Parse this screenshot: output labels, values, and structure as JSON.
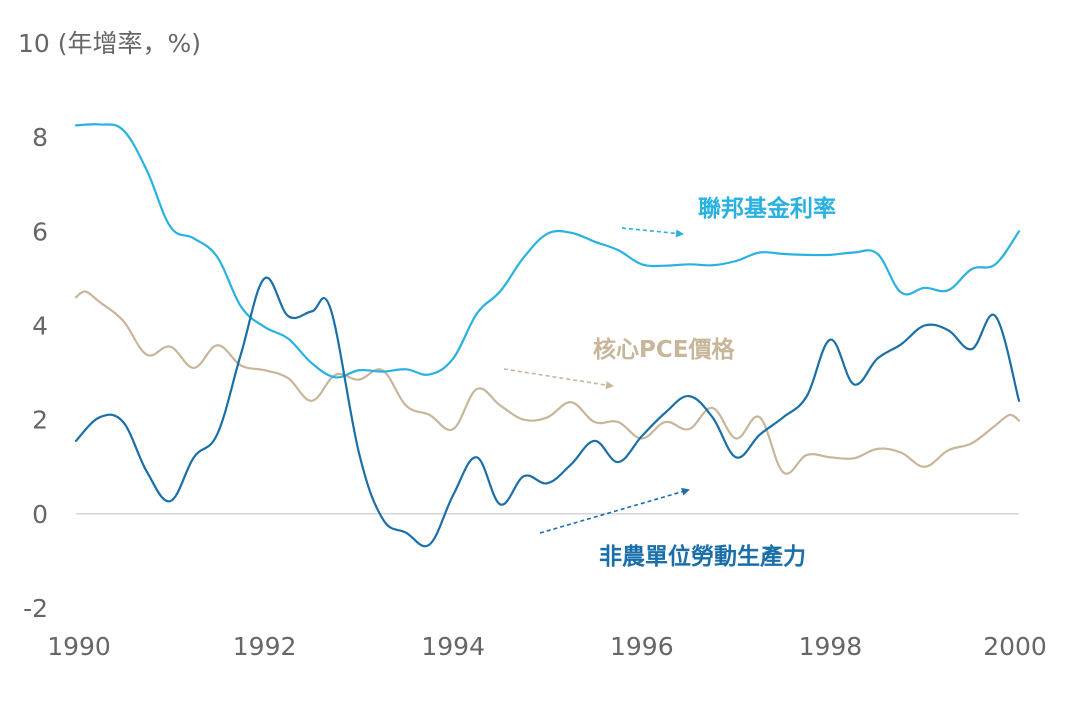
{
  "chart_data": {
    "type": "line",
    "ylabel": "10 (年增率，%)",
    "xlim": [
      1990,
      2000
    ],
    "ylim": [
      -2,
      10
    ],
    "y_ticks": [
      "-2",
      "0",
      "2",
      "4",
      "6",
      "8",
      "10"
    ],
    "x_ticks": [
      "1990",
      "1992",
      "1994",
      "1996",
      "1998",
      "2000"
    ],
    "zero_line": true,
    "series": [
      {
        "name": "聯邦基金利率",
        "color": "#29b1e0",
        "points": [
          [
            1990.0,
            8.25
          ],
          [
            1990.25,
            8.27
          ],
          [
            1990.5,
            8.15
          ],
          [
            1990.75,
            7.3
          ],
          [
            1991.0,
            6.1
          ],
          [
            1991.25,
            5.85
          ],
          [
            1991.5,
            5.45
          ],
          [
            1991.75,
            4.4
          ],
          [
            1992.0,
            3.97
          ],
          [
            1992.25,
            3.72
          ],
          [
            1992.5,
            3.2
          ],
          [
            1992.75,
            2.9
          ],
          [
            1993.0,
            3.05
          ],
          [
            1993.25,
            3.02
          ],
          [
            1993.5,
            3.07
          ],
          [
            1993.75,
            2.96
          ],
          [
            1994.0,
            3.3
          ],
          [
            1994.25,
            4.25
          ],
          [
            1994.5,
            4.73
          ],
          [
            1994.75,
            5.45
          ],
          [
            1995.0,
            5.95
          ],
          [
            1995.25,
            5.97
          ],
          [
            1995.5,
            5.78
          ],
          [
            1995.75,
            5.6
          ],
          [
            1996.0,
            5.3
          ],
          [
            1996.25,
            5.27
          ],
          [
            1996.5,
            5.3
          ],
          [
            1996.75,
            5.28
          ],
          [
            1997.0,
            5.37
          ],
          [
            1997.25,
            5.55
          ],
          [
            1997.5,
            5.52
          ],
          [
            1997.75,
            5.5
          ],
          [
            1998.0,
            5.5
          ],
          [
            1998.25,
            5.55
          ],
          [
            1998.5,
            5.52
          ],
          [
            1998.75,
            4.7
          ],
          [
            1999.0,
            4.8
          ],
          [
            1999.25,
            4.75
          ],
          [
            1999.5,
            5.2
          ],
          [
            1999.75,
            5.3
          ],
          [
            2000.0,
            6.0
          ]
        ]
      },
      {
        "name": "核心PCE價格",
        "color": "#c8b69a",
        "points": [
          [
            1990.0,
            4.6
          ],
          [
            1990.1,
            4.72
          ],
          [
            1990.25,
            4.5
          ],
          [
            1990.5,
            4.1
          ],
          [
            1990.75,
            3.38
          ],
          [
            1991.0,
            3.55
          ],
          [
            1991.25,
            3.1
          ],
          [
            1991.5,
            3.58
          ],
          [
            1991.75,
            3.15
          ],
          [
            1992.0,
            3.05
          ],
          [
            1992.25,
            2.88
          ],
          [
            1992.5,
            2.4
          ],
          [
            1992.75,
            2.95
          ],
          [
            1993.0,
            2.85
          ],
          [
            1993.25,
            3.05
          ],
          [
            1993.5,
            2.3
          ],
          [
            1993.75,
            2.1
          ],
          [
            1994.0,
            1.8
          ],
          [
            1994.25,
            2.65
          ],
          [
            1994.5,
            2.3
          ],
          [
            1994.75,
            2.0
          ],
          [
            1995.0,
            2.05
          ],
          [
            1995.25,
            2.37
          ],
          [
            1995.5,
            1.95
          ],
          [
            1995.75,
            1.95
          ],
          [
            1996.0,
            1.6
          ],
          [
            1996.25,
            1.95
          ],
          [
            1996.5,
            1.8
          ],
          [
            1996.75,
            2.25
          ],
          [
            1997.0,
            1.6
          ],
          [
            1997.25,
            2.05
          ],
          [
            1997.5,
            0.88
          ],
          [
            1997.75,
            1.25
          ],
          [
            1998.0,
            1.2
          ],
          [
            1998.25,
            1.18
          ],
          [
            1998.5,
            1.38
          ],
          [
            1998.75,
            1.3
          ],
          [
            1999.0,
            1.0
          ],
          [
            1999.25,
            1.35
          ],
          [
            1999.5,
            1.5
          ],
          [
            1999.75,
            1.88
          ],
          [
            1999.9,
            2.1
          ],
          [
            2000.0,
            1.98
          ]
        ]
      },
      {
        "name": "非農單位勞動生產力",
        "color": "#1a6fa8",
        "points": [
          [
            1990.0,
            1.55
          ],
          [
            1990.25,
            2.05
          ],
          [
            1990.5,
            1.95
          ],
          [
            1990.75,
            0.9
          ],
          [
            1991.0,
            0.27
          ],
          [
            1991.25,
            1.2
          ],
          [
            1991.5,
            1.7
          ],
          [
            1991.75,
            3.4
          ],
          [
            1992.0,
            5.0
          ],
          [
            1992.25,
            4.2
          ],
          [
            1992.5,
            4.3
          ],
          [
            1992.7,
            4.35
          ],
          [
            1993.0,
            1.3
          ],
          [
            1993.25,
            -0.1
          ],
          [
            1993.5,
            -0.4
          ],
          [
            1993.75,
            -0.65
          ],
          [
            1994.0,
            0.4
          ],
          [
            1994.25,
            1.2
          ],
          [
            1994.5,
            0.2
          ],
          [
            1994.75,
            0.8
          ],
          [
            1995.0,
            0.65
          ],
          [
            1995.25,
            1.05
          ],
          [
            1995.5,
            1.55
          ],
          [
            1995.75,
            1.1
          ],
          [
            1996.0,
            1.65
          ],
          [
            1996.25,
            2.15
          ],
          [
            1996.5,
            2.5
          ],
          [
            1996.75,
            2.05
          ],
          [
            1997.0,
            1.2
          ],
          [
            1997.25,
            1.68
          ],
          [
            1997.5,
            2.05
          ],
          [
            1997.75,
            2.5
          ],
          [
            1998.0,
            3.7
          ],
          [
            1998.25,
            2.75
          ],
          [
            1998.5,
            3.3
          ],
          [
            1998.75,
            3.6
          ],
          [
            1999.0,
            4.0
          ],
          [
            1999.25,
            3.9
          ],
          [
            1999.5,
            3.5
          ],
          [
            1999.75,
            4.2
          ],
          [
            2000.0,
            2.4
          ]
        ]
      }
    ],
    "annotations": [
      {
        "text": "聯邦基金利率",
        "series": 0
      },
      {
        "text": "核心PCE價格",
        "series": 1
      },
      {
        "text": "非農單位勞動生產力",
        "series": 2
      }
    ]
  }
}
